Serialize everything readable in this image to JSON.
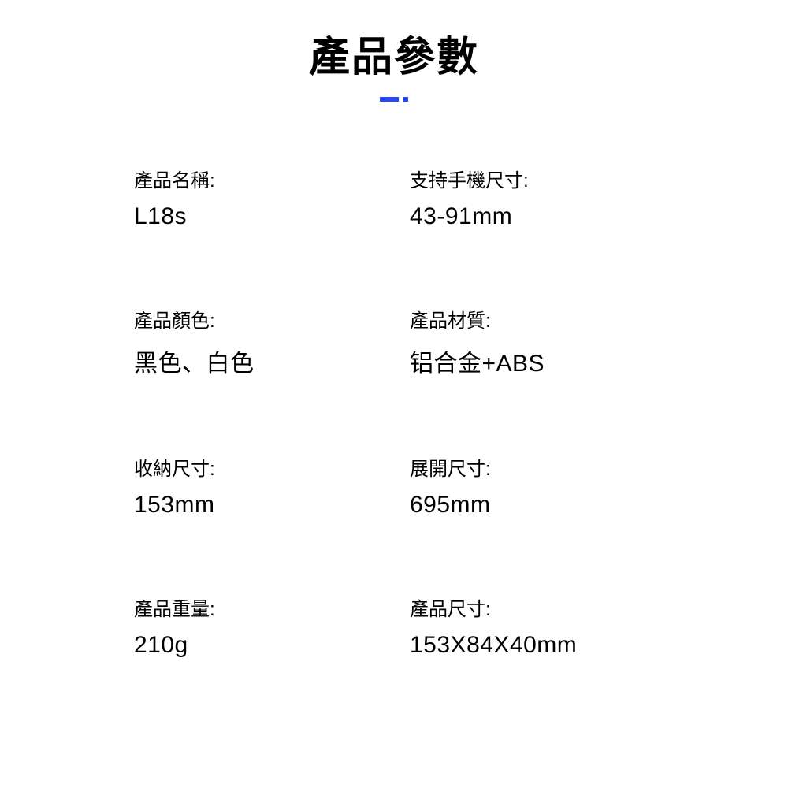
{
  "title": "產品參數",
  "colors": {
    "accent": "#2448ff",
    "text": "#000000",
    "background": "#ffffff"
  },
  "typography": {
    "title_fontsize": 52,
    "label_fontsize": 24,
    "value_fontsize": 30
  },
  "specs": [
    {
      "label": "產品名稱:",
      "value": "L18s"
    },
    {
      "label": "支持手機尺寸:",
      "value": "43-91mm"
    },
    {
      "label": "產品顏色:",
      "value": "黑色、白色"
    },
    {
      "label": "產品材質:",
      "value": "铝合金+ABS"
    },
    {
      "label": "收納尺寸:",
      "value": "153mm"
    },
    {
      "label": "展開尺寸:",
      "value": "695mm"
    },
    {
      "label": "產品重量:",
      "value": "210g"
    },
    {
      "label": "產品尺寸:",
      "value": "153X84X40mm"
    }
  ]
}
